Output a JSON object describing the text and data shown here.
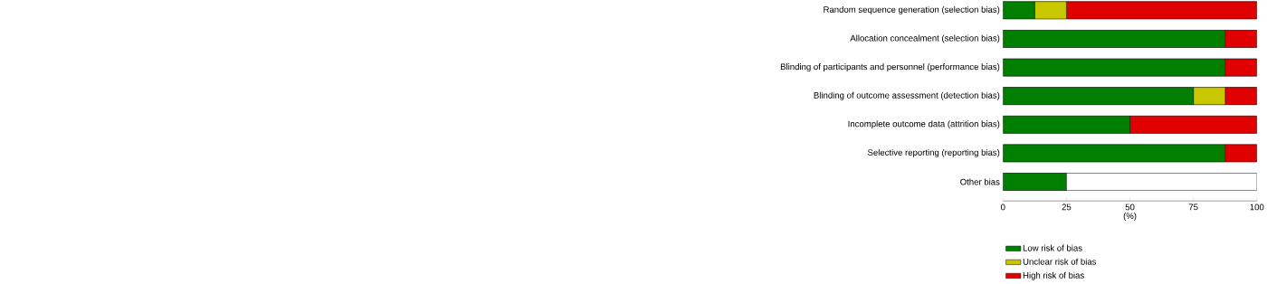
{
  "chart_data": {
    "type": "bar",
    "orientation": "horizontal",
    "stacked": true,
    "categories": [
      "Random sequence generation (selection bias)",
      "Allocation concealment (selection bias)",
      "Blinding of participants and personnel (performance bias)",
      "Blinding of outcome assessment (detection bias)",
      "Incomplete outcome data (attrition bias)",
      "Selective reporting (reporting bias)",
      "Other bias"
    ],
    "series": [
      {
        "name": "Low risk of bias",
        "color": "#007f00",
        "values": [
          12.5,
          87.5,
          87.5,
          75,
          50,
          87.5,
          25
        ]
      },
      {
        "name": "Unclear risk of bias",
        "color": "#c8c800",
        "values": [
          12.5,
          0,
          0,
          12.5,
          0,
          0,
          0
        ]
      },
      {
        "name": "High risk of bias",
        "color": "#e00000",
        "values": [
          75,
          12.5,
          12.5,
          12.5,
          50,
          12.5,
          0
        ]
      }
    ],
    "xlim": [
      0,
      100
    ],
    "xticks": [
      0,
      25,
      50,
      75,
      100
    ],
    "xlabel": "(%)",
    "legend": "bottom"
  }
}
